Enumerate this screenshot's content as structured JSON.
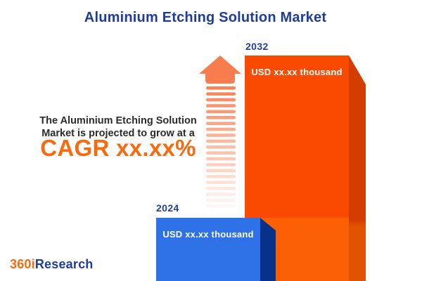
{
  "title": "Aluminium Etching Solution Market",
  "description": {
    "line1": "The Aluminium Etching Solution",
    "line2": "Market is projected to grow at a",
    "cagr_text": "CAGR xx.xx%"
  },
  "chart_data": {
    "type": "bar",
    "title": "Aluminium Etching Solution Market",
    "categories": [
      "2024",
      "2032"
    ],
    "bars": [
      {
        "year": "2024",
        "value_label": "USD xx.xx thousand",
        "color": "#2F72E8",
        "relative_height": 0.28
      },
      {
        "year": "2032",
        "value_label": "USD xx.xx thousand",
        "color": "#FB4A01",
        "relative_height": 1.0
      }
    ],
    "annotation": "The Aluminium Etching Solution Market is projected to grow at a CAGR xx.xx%",
    "legend": "none",
    "grid": "off"
  },
  "logo": {
    "brand_orange": "360i",
    "brand_blue": "Research"
  },
  "colors": {
    "title_blue": "#1E3D99",
    "accent_orange": "#F9690E",
    "text_dark": "#2B2B2B",
    "bar_2024_front": "#2F72E8",
    "bar_2024_side": "#083189",
    "bar_2032_front_top": "#FB4A01",
    "bar_2032_front_bottom": "#FD6004",
    "bar_2032_side_top": "#D33E00",
    "bar_2032_side_bottom": "#E15300",
    "arrow_orange": "#F87C4E"
  }
}
